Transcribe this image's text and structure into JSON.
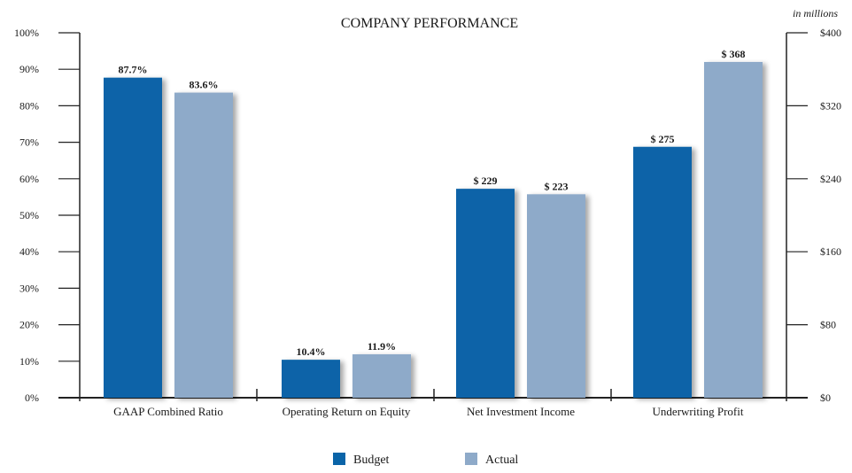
{
  "chart_data": {
    "type": "bar",
    "title": "COMPANY PERFORMANCE",
    "right_axis_unit": "in millions",
    "categories": [
      "GAAP Combined Ratio",
      "Operating Return on Equity",
      "Net Investment Income",
      "Underwriting Profit"
    ],
    "category_axis": [
      "left",
      "left",
      "right",
      "right"
    ],
    "series": [
      {
        "name": "Budget",
        "color": "#0a64a8",
        "values": [
          87.7,
          10.4,
          229,
          275
        ],
        "labels": [
          "87.7%",
          "10.4%",
          "$ 229",
          "$ 275"
        ]
      },
      {
        "name": "Actual",
        "color": "#8eaac9",
        "values": [
          83.6,
          11.9,
          223,
          368
        ],
        "labels": [
          "83.6%",
          "11.9%",
          "$ 223",
          "$ 368"
        ]
      }
    ],
    "left_axis": {
      "ylim": [
        0,
        100
      ],
      "ticks": [
        0,
        10,
        20,
        30,
        40,
        50,
        60,
        70,
        80,
        90,
        100
      ],
      "tick_labels": [
        "0%",
        "10%",
        "20%",
        "30%",
        "40%",
        "50%",
        "60%",
        "70%",
        "80%",
        "90%",
        "100%"
      ]
    },
    "right_axis": {
      "ylim": [
        0,
        400
      ],
      "ticks": [
        0,
        80,
        160,
        240,
        320,
        400
      ],
      "tick_labels": [
        "$0",
        "$80",
        "$160",
        "$240",
        "$320",
        "$400"
      ]
    },
    "grid": false,
    "legend_position": "bottom-center"
  }
}
